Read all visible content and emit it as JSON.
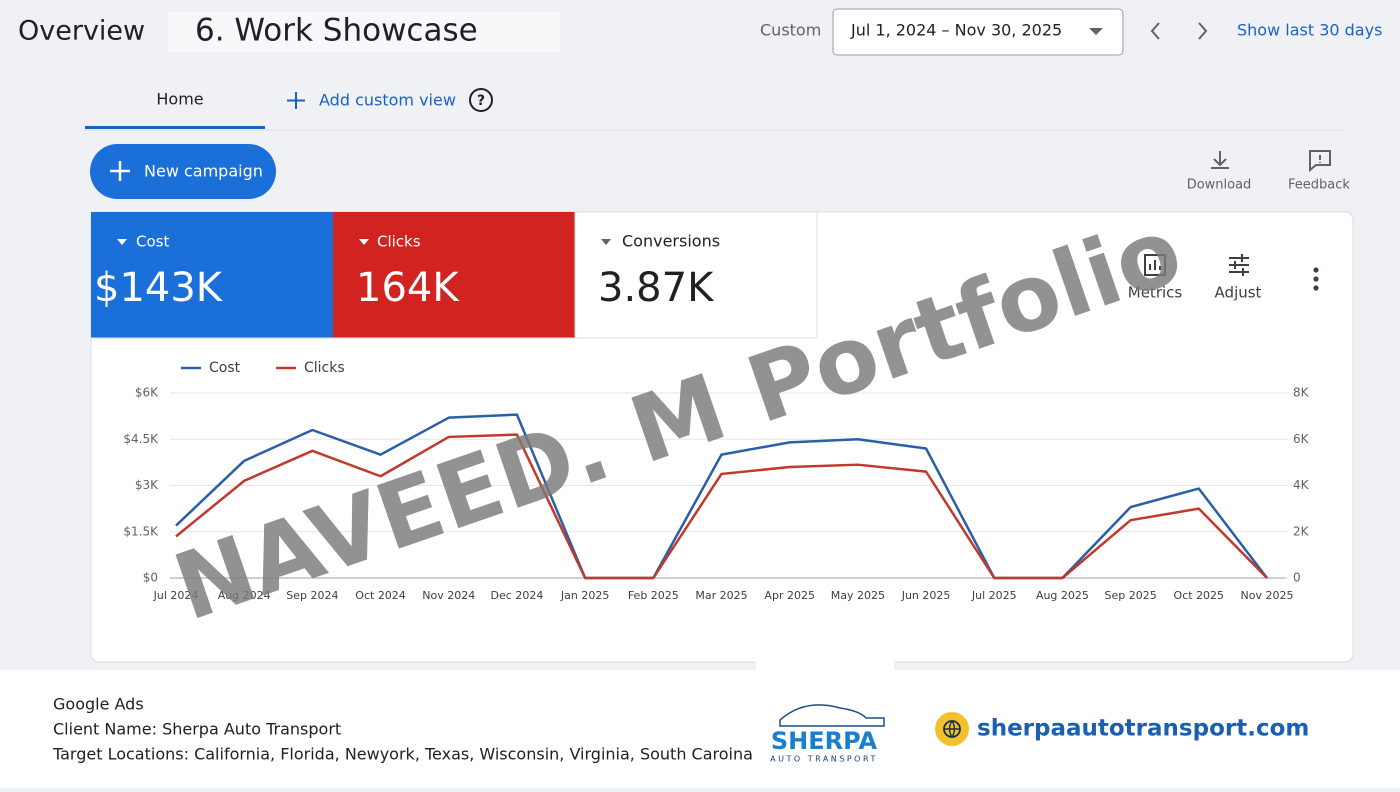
{
  "header": {
    "title": "Overview",
    "subtitle": "6. Work Showcase",
    "range_label": "Custom",
    "date_range": "Jul 1, 2024 – Nov 30, 2025",
    "show_last": "Show last 30 days"
  },
  "tabs": {
    "home": "Home",
    "add": "Add custom view"
  },
  "actions": {
    "new_campaign": "New campaign",
    "download": "Download",
    "feedback": "Feedback",
    "metrics": "Metrics",
    "adjust": "Adjust"
  },
  "scorecards": [
    {
      "name": "Cost",
      "value": "$143K"
    },
    {
      "name": "Clicks",
      "value": "164K"
    },
    {
      "name": "Conversions",
      "value": "3.87K"
    }
  ],
  "chart_data": {
    "type": "line",
    "categories": [
      "Jul 2024",
      "Aug 2024",
      "Sep 2024",
      "Oct 2024",
      "Nov 2024",
      "Dec 2024",
      "Jan 2025",
      "Feb 2025",
      "Mar 2025",
      "Apr 2025",
      "May 2025",
      "Jun 2025",
      "Jul 2025",
      "Aug 2025",
      "Sep 2025",
      "Oct 2025",
      "Nov 2025"
    ],
    "series": [
      {
        "name": "Cost",
        "color": "#2a5fa8",
        "values": [
          1700,
          3800,
          4800,
          4000,
          5200,
          5300,
          0,
          0,
          4000,
          4400,
          4500,
          4200,
          0,
          0,
          2300,
          2900,
          0
        ]
      },
      {
        "name": "Clicks",
        "color": "#c0392b",
        "axis": "y2",
        "values": [
          1800,
          4200,
          5500,
          4400,
          6100,
          6200,
          0,
          0,
          4500,
          4800,
          4900,
          4600,
          0,
          0,
          2500,
          3000,
          0
        ]
      }
    ],
    "ylim": [
      0,
      6000
    ],
    "yticks": [
      {
        "value": 0,
        "label": "$0"
      },
      {
        "value": 1500,
        "label": "$1.5K"
      },
      {
        "value": 3000,
        "label": "$3K"
      },
      {
        "value": 4500,
        "label": "$4.5K"
      },
      {
        "value": 6000,
        "label": "$6K"
      }
    ],
    "y2lim": [
      0,
      8000
    ],
    "y2ticks": [
      0,
      {
        "value": 2000,
        "label": "2K"
      },
      {
        "value": 4000,
        "label": "4K"
      },
      {
        "value": 6000,
        "label": "6K"
      },
      {
        "value": 8000,
        "label": "8K"
      }
    ],
    "grid": true
  },
  "watermark": "NAVEED. M Portfolio",
  "footer": {
    "lines": [
      "Google Ads",
      "Client Name: Sherpa Auto Transport",
      "Target Locations: California, Florida, Newyork, Texas, Wisconsin, Virginia, South Caroina"
    ],
    "logo": "SHERPA",
    "logo_sub": "AUTO TRANSPORT",
    "website": "sherpaautotransport.com"
  }
}
